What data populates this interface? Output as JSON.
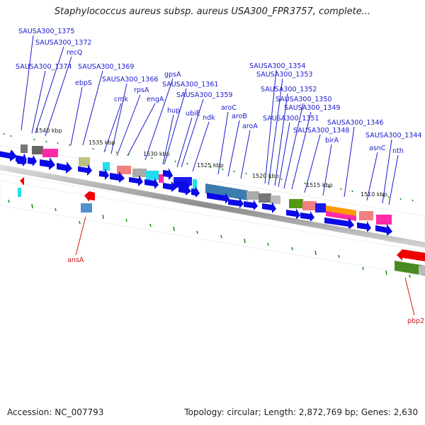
{
  "title": "Staphylococcus aureus subsp. aureus USA300_FPR3757, complete...",
  "accession": "Accession: NC_007793",
  "summary": "Topology: circular; Length: 2,872,769 bp; Genes: 2,630",
  "colors": {
    "label_blue": "#1a1acc",
    "label_red": "#cc1a1a",
    "forward_arrow": "#0a0ae6",
    "reverse_arrow": "#ee0000",
    "backbone": "#8c8c8c",
    "tick": "#118811"
  },
  "tick_labels": [
    "1540 kbp",
    "1535 kbp",
    "1530 kbp",
    "1525 kbp",
    "1520 kbp",
    "1515 kbp",
    "1510 kbp"
  ],
  "gene_labels": [
    "SAUSA300_1375",
    "SAUSA300_1372",
    "recQ",
    "SAUSA300_1374",
    "SAUSA300_1369",
    "ebpS",
    "SAUSA300_1366",
    "rpsA",
    "cmk",
    "gpsA",
    "SAUSA300_1361",
    "engA",
    "SAUSA300_1359",
    "hup",
    "ubiE",
    "ndk",
    "aroC",
    "aroB",
    "aroA",
    "SAUSA300_1354",
    "SAUSA300_1353",
    "SAUSA300_1352",
    "SAUSA300_1350",
    "SAUSA300_1349",
    "SAUSA300_1351",
    "SAUSA300_1348",
    "birA",
    "SAUSA300_1346",
    "asnC",
    "SAUSA300_1344",
    "nth"
  ],
  "lower_labels": [
    "ansA",
    "pbp2"
  ]
}
